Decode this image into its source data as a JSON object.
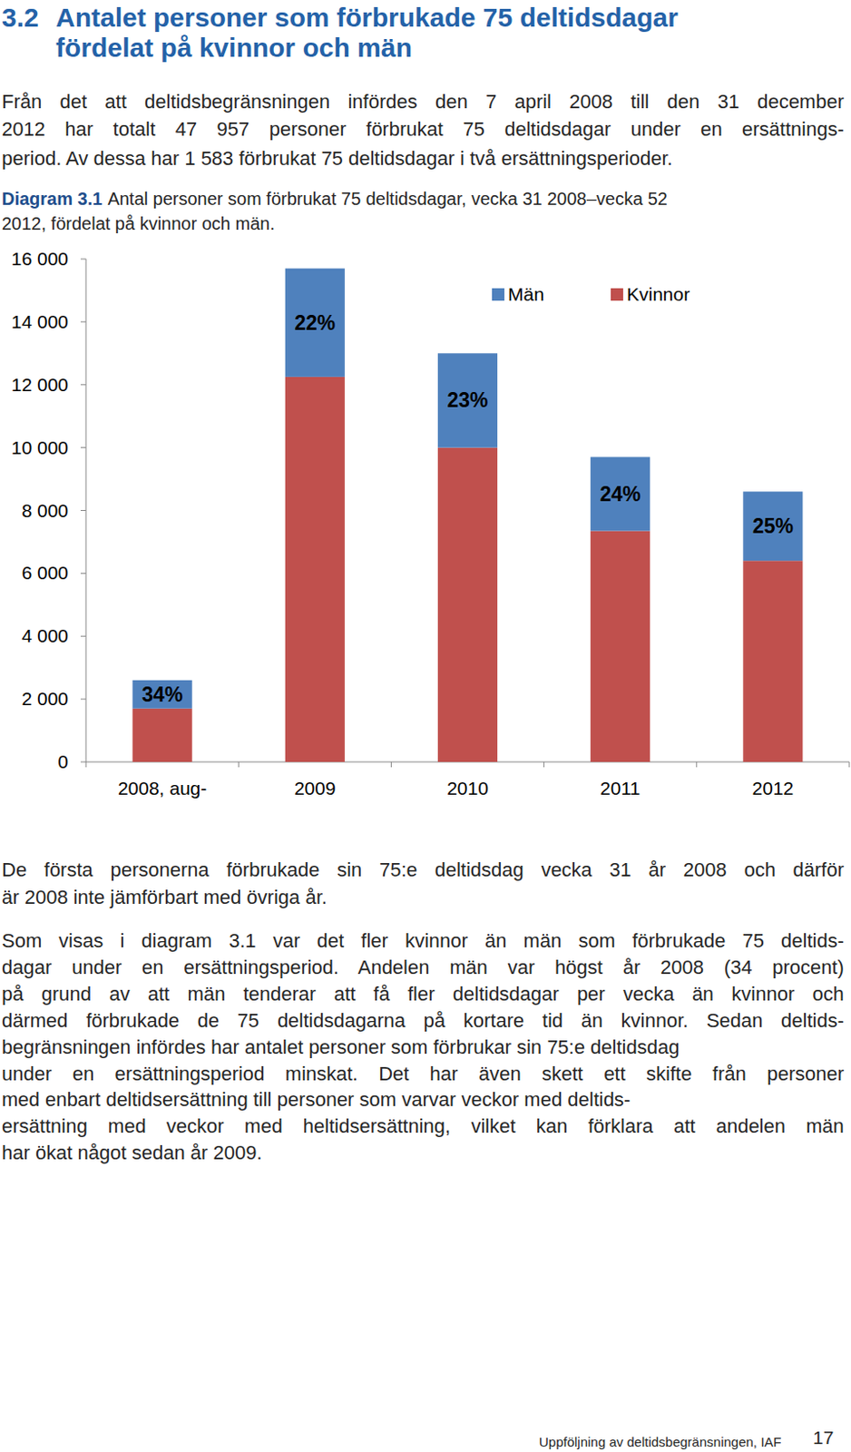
{
  "heading": {
    "number": "3.2",
    "lines": [
      "Antalet personer som förbrukade 75 deltidsdagar",
      "fördelat på kvinnor och män"
    ]
  },
  "intro": {
    "lines": [
      "Från det att deltidsbegränsningen infördes den 7 april 2008 till den 31 december",
      "2012 har totalt 47 957 personer förbrukat 75 deltidsdagar under en ersättnings-",
      "period. Av dessa har 1 583 förbrukat 75 deltidsdagar i två ersättningsperioder."
    ]
  },
  "diagram_caption": {
    "label": "Diagram 3.1",
    "lines": [
      "Antal personer som förbrukat 75 deltidsdagar, vecka 31 2008–vecka 52",
      "2012, fördelat på kvinnor och män."
    ]
  },
  "chart_data": {
    "type": "bar",
    "stacked": true,
    "categories": [
      "2008, aug-",
      "2009",
      "2010",
      "2011",
      "2012"
    ],
    "series": [
      {
        "name": "Män",
        "color": "#4f81bd",
        "values": [
          900,
          3450,
          3000,
          2350,
          2200
        ]
      },
      {
        "name": "Kvinnor",
        "color": "#c0504d",
        "values": [
          1700,
          12250,
          10000,
          7350,
          6400
        ]
      }
    ],
    "annotations": [
      "34%",
      "22%",
      "23%",
      "24%",
      "25%"
    ],
    "ylim": [
      0,
      16000
    ],
    "yticks": [
      0,
      {
        "value": 2000,
        "label": "2 000"
      },
      {
        "value": 4000,
        "label": "4 000"
      },
      {
        "value": 6000,
        "label": "6 000"
      },
      {
        "value": 8000,
        "label": "8 000"
      },
      {
        "value": 10000,
        "label": "10 000"
      },
      {
        "value": 12000,
        "label": "12 000"
      },
      {
        "value": 14000,
        "label": "14 000"
      },
      {
        "value": 16000,
        "label": "16 000"
      }
    ],
    "grid": false,
    "legend": "top-right"
  },
  "note": {
    "lines": [
      "De första personerna förbrukade sin 75:e deltidsdag vecka 31 år 2008 och därför",
      "är 2008 inte jämförbart med övriga år."
    ]
  },
  "body": {
    "lines": [
      "Som visas i diagram 3.1 var det fler kvinnor än män som förbrukade 75 deltids-",
      "dagar under en ersättningsperiod. Andelen män var högst år 2008 (34 procent)",
      "på grund av att män tenderar att få fler deltidsdagar per vecka än kvinnor och",
      "därmed förbrukade de 75 deltidsdagarna på kortare tid än kvinnor. Sedan deltids-",
      "begränsningen infördes har antalet personer som förbrukar sin 75:e deltidsdag",
      "under en ersättningsperiod minskat. Det har även skett ett skifte från personer",
      "med enbart deltidsersättning till personer som varvar veckor med deltids-",
      "ersättning med veckor med heltidsersättning, vilket kan förklara att andelen män",
      "har ökat något sedan år 2009."
    ]
  },
  "footer": {
    "text": "Uppföljning av deltidsbegränsningen, IAF",
    "page": "17"
  }
}
